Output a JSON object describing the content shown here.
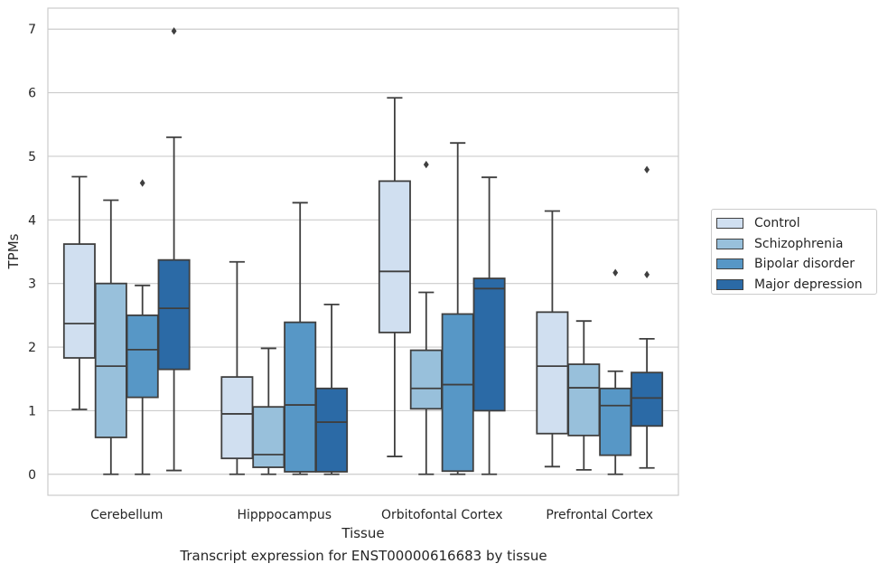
{
  "chart_data": {
    "type": "boxplot",
    "xlabel": "Tissue",
    "ylabel": "TPMs",
    "ylim": [
      -0.33,
      7.33
    ],
    "yticks": [
      0,
      1,
      2,
      3,
      4,
      5,
      6,
      7
    ],
    "grid": true,
    "legend_position": "right",
    "categories": [
      "Cerebellum",
      "Hipppocampus",
      "Orbitofontal Cortex",
      "Prefrontal Cortex"
    ],
    "series": [
      {
        "name": "Control",
        "color": "#d0dff0",
        "boxes": [
          {
            "whislo": 1.02,
            "q1": 1.83,
            "med": 2.37,
            "q3": 3.62,
            "whishi": 4.68,
            "fliers": []
          },
          {
            "whislo": 0.0,
            "q1": 0.25,
            "med": 0.95,
            "q3": 1.53,
            "whishi": 3.34,
            "fliers": []
          },
          {
            "whislo": 0.28,
            "q1": 2.23,
            "med": 3.19,
            "q3": 4.61,
            "whishi": 5.92,
            "fliers": []
          },
          {
            "whislo": 0.12,
            "q1": 0.64,
            "med": 1.7,
            "q3": 2.55,
            "whishi": 4.14,
            "fliers": []
          }
        ]
      },
      {
        "name": "Schizophrenia",
        "color": "#98c0db",
        "boxes": [
          {
            "whislo": 0.0,
            "q1": 0.58,
            "med": 1.7,
            "q3": 3.0,
            "whishi": 4.31,
            "fliers": []
          },
          {
            "whislo": 0.0,
            "q1": 0.11,
            "med": 0.31,
            "q3": 1.06,
            "whishi": 1.98,
            "fliers": []
          },
          {
            "whislo": 0.0,
            "q1": 1.03,
            "med": 1.35,
            "q3": 1.95,
            "whishi": 2.86,
            "fliers": [
              4.87
            ]
          },
          {
            "whislo": 0.07,
            "q1": 0.61,
            "med": 1.36,
            "q3": 1.73,
            "whishi": 2.41,
            "fliers": []
          }
        ]
      },
      {
        "name": "Bipolar disorder",
        "color": "#5797c6",
        "boxes": [
          {
            "whislo": 0.0,
            "q1": 1.21,
            "med": 1.96,
            "q3": 2.5,
            "whishi": 2.97,
            "fliers": [
              4.58
            ]
          },
          {
            "whislo": 0.0,
            "q1": 0.04,
            "med": 1.09,
            "q3": 2.39,
            "whishi": 4.27,
            "fliers": []
          },
          {
            "whislo": 0.0,
            "q1": 0.05,
            "med": 1.41,
            "q3": 2.52,
            "whishi": 5.21,
            "fliers": []
          },
          {
            "whislo": 0.0,
            "q1": 0.3,
            "med": 1.08,
            "q3": 1.35,
            "whishi": 1.62,
            "fliers": [
              3.17
            ]
          }
        ]
      },
      {
        "name": "Major depression",
        "color": "#2b6aa6",
        "boxes": [
          {
            "whislo": 0.06,
            "q1": 1.65,
            "med": 2.61,
            "q3": 3.37,
            "whishi": 5.3,
            "fliers": [
              6.97
            ]
          },
          {
            "whislo": 0.0,
            "q1": 0.04,
            "med": 0.82,
            "q3": 1.35,
            "whishi": 2.67,
            "fliers": []
          },
          {
            "whislo": 0.0,
            "q1": 1.0,
            "med": 2.92,
            "q3": 3.08,
            "whishi": 4.67,
            "fliers": []
          },
          {
            "whislo": 0.1,
            "q1": 0.76,
            "med": 1.2,
            "q3": 1.6,
            "whishi": 2.13,
            "fliers": [
              3.14,
              4.79
            ]
          }
        ]
      }
    ]
  },
  "caption": "Transcript expression for ENST00000616683 by tissue"
}
